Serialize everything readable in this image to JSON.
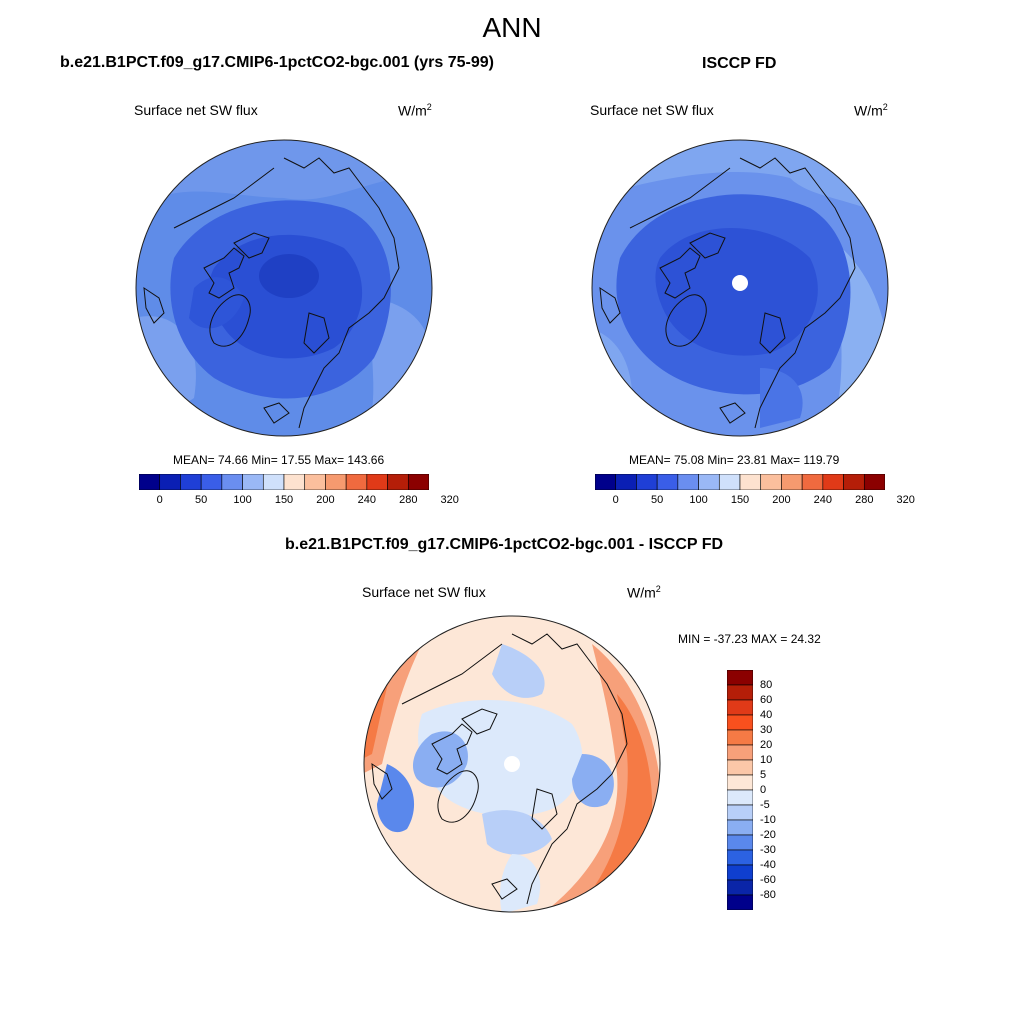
{
  "figure": {
    "title": "ANN"
  },
  "panels": [
    {
      "title": "b.e21.B1PCT.f09_g17.CMIP6-1pctCO2-bgc.001 (yrs 75-99)",
      "variable": "Surface net SW flux",
      "units_base": "W/m",
      "units_exp": "2",
      "stats_text": "MEAN=  74.66  Min=  17.55  Max= 143.66",
      "mean": 74.66,
      "min": 17.55,
      "max": 143.66
    },
    {
      "title": "ISCCP FD",
      "variable": "Surface net SW flux",
      "units_base": "W/m",
      "units_exp": "2",
      "stats_text": "MEAN=  75.08  Min=  23.81  Max= 119.79",
      "mean": 75.08,
      "min": 23.81,
      "max": 119.79
    },
    {
      "title": "b.e21.B1PCT.f09_g17.CMIP6-1pctCO2-bgc.001 - ISCCP FD",
      "variable": "Surface net SW flux",
      "units_base": "W/m",
      "units_exp": "2",
      "stats_text": "MIN = -37.23 MAX =  24.32",
      "min": -37.23,
      "max": 24.32
    }
  ],
  "colorbar_abs": {
    "tick_labels": [
      "0",
      "50",
      "100",
      "150",
      "200",
      "240",
      "280",
      "320"
    ],
    "colors": [
      "#00008b",
      "#0a1fb4",
      "#1f3fd6",
      "#3a5ee8",
      "#6a8ef0",
      "#9ab8f6",
      "#cfe0fb",
      "#fde2cf",
      "#fbbf9d",
      "#f69a6f",
      "#f06a3f",
      "#e03a18",
      "#b51e08",
      "#8b0000"
    ]
  },
  "colorbar_diff": {
    "tick_labels": [
      "80",
      "60",
      "40",
      "30",
      "20",
      "10",
      "5",
      "0",
      "-5",
      "-10",
      "-20",
      "-30",
      "-40",
      "-60",
      "-80"
    ],
    "colors": [
      "#8b0000",
      "#b51e08",
      "#e03a18",
      "#f8501e",
      "#f57a45",
      "#f7a07a",
      "#fbc7a8",
      "#fde7d7",
      "#dce9fb",
      "#b8cff8",
      "#8aaef2",
      "#5a88ec",
      "#2c62e2",
      "#0f3fcf",
      "#0a25a8",
      "#00008b"
    ]
  }
}
